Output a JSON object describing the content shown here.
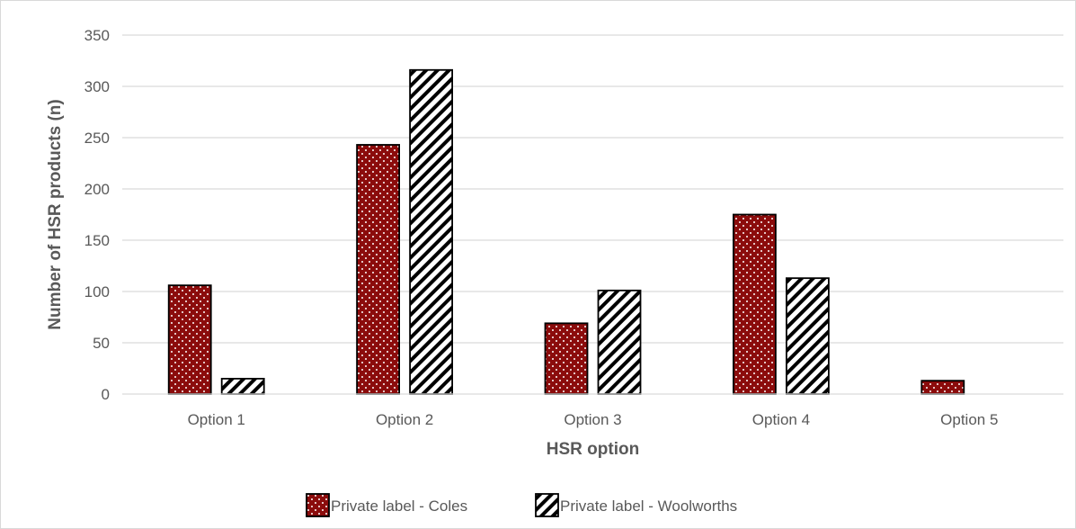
{
  "colors": {
    "coles_fill": "#8B0C0C",
    "coles_dots": "#ffffff",
    "woolworths_fill": "#ffffff",
    "woolworths_hatch": "#000000",
    "gridline": "#d9d9d9",
    "text": "#595959"
  },
  "chart_data": {
    "type": "bar",
    "title": "",
    "xlabel": "HSR option",
    "ylabel": "Number of HSR products (n)",
    "ylim": [
      0,
      350
    ],
    "yticks": [
      0,
      50,
      100,
      150,
      200,
      250,
      300,
      350
    ],
    "grid": true,
    "legend_position": "bottom",
    "categories": [
      "Option 1",
      "Option 2",
      "Option 3",
      "Option 4",
      "Option 5"
    ],
    "series": [
      {
        "name": "Private label - Coles",
        "values": [
          106,
          243,
          69,
          175,
          13
        ],
        "pattern": "dotted"
      },
      {
        "name": "Private label - Woolworths",
        "values": [
          15,
          316,
          101,
          113,
          0
        ],
        "pattern": "hatched"
      }
    ]
  }
}
